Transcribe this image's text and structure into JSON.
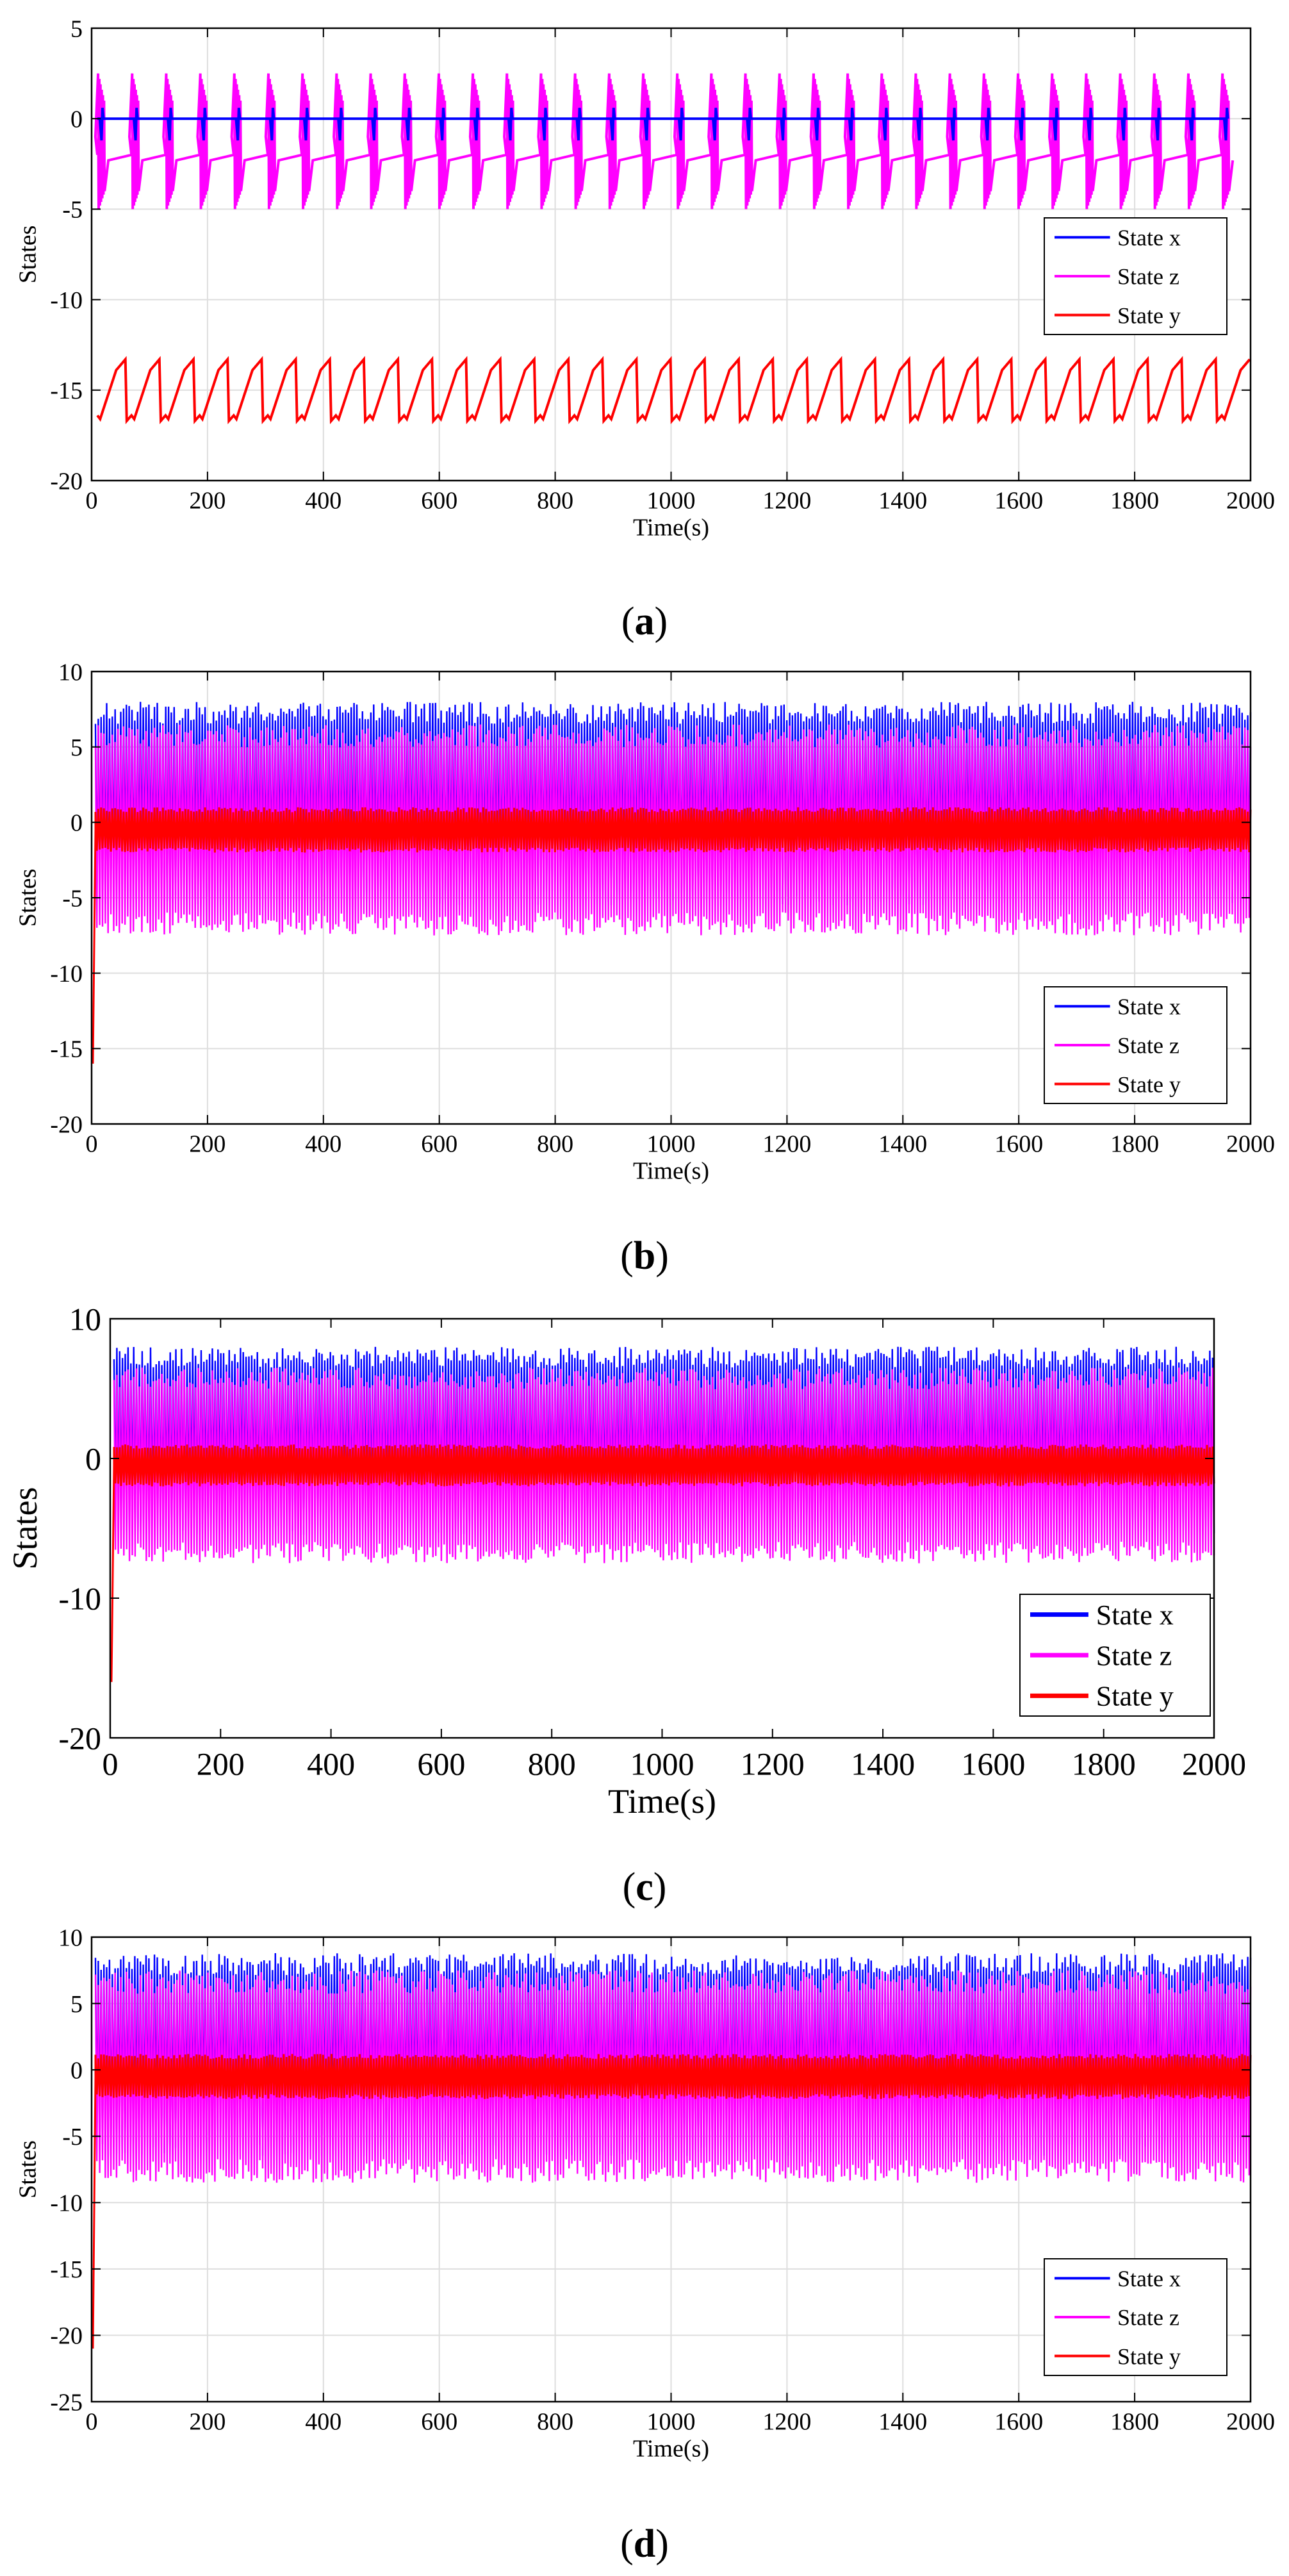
{
  "figure": {
    "panels": [
      {
        "label": "a",
        "caption_open": "(",
        "caption_close": ")"
      },
      {
        "label": "b",
        "caption_open": "(",
        "caption_close": ")"
      },
      {
        "label": "c",
        "caption_open": "(",
        "caption_close": ")"
      },
      {
        "label": "d",
        "caption_open": "(",
        "caption_close": ")"
      }
    ]
  },
  "colors": {
    "state_x": "#0000ff",
    "state_z": "#ff00ff",
    "state_y": "#ff0000",
    "grid": "#dedede",
    "axis": "#000000"
  },
  "chart_data": [
    {
      "type": "line",
      "panel": "a",
      "title": "",
      "xlabel": "Time(s)",
      "ylabel": "States",
      "xlim": [
        0,
        2000
      ],
      "ylim": [
        -20,
        5
      ],
      "xticks": [
        0,
        200,
        400,
        600,
        800,
        1000,
        1200,
        1400,
        1600,
        1800,
        2000
      ],
      "yticks": [
        5,
        0,
        -5,
        -10,
        -15,
        -20
      ],
      "grid": true,
      "legend_position": "center-right",
      "pattern": "periodic",
      "period": 58.8,
      "series": [
        {
          "name": "State x",
          "color": "#0000ff",
          "baseline": 0,
          "spike_low": -1.2,
          "spike_high": 0.6
        },
        {
          "name": "State z",
          "color": "#ff00ff",
          "baseline": -1.5,
          "min": -5,
          "max": 2.5,
          "drift": [
            -2.0,
            -1.0
          ]
        },
        {
          "name": "State y",
          "color": "#ff0000",
          "min": -16.7,
          "max": -13.3,
          "sawtooth": true
        }
      ]
    },
    {
      "type": "line",
      "panel": "b",
      "title": "",
      "xlabel": "Time(s)",
      "ylabel": "States",
      "xlim": [
        0,
        2000
      ],
      "ylim": [
        -20,
        10
      ],
      "xticks": [
        0,
        200,
        400,
        600,
        800,
        1000,
        1200,
        1400,
        1600,
        1800,
        2000
      ],
      "yticks": [
        10,
        5,
        0,
        -5,
        -10,
        -15,
        -20
      ],
      "grid": true,
      "legend_position": "bottom-right",
      "pattern": "chaotic",
      "initial_transient": -16,
      "series": [
        {
          "name": "State x",
          "color": "#0000ff",
          "min": -5.5,
          "max": 8.0
        },
        {
          "name": "State z",
          "color": "#ff00ff",
          "min": -7.5,
          "max": 6.5
        },
        {
          "name": "State y",
          "color": "#ff0000",
          "min": -2.0,
          "max": 1.0
        }
      ]
    },
    {
      "type": "line",
      "panel": "c",
      "title": "",
      "xlabel": "Time(s)",
      "ylabel": "States",
      "xlim": [
        0,
        2000
      ],
      "ylim": [
        -20,
        10
      ],
      "xticks": [
        0,
        200,
        400,
        600,
        800,
        1000,
        1200,
        1400,
        1600,
        1800,
        2000
      ],
      "yticks": [
        10,
        0,
        -10,
        -20
      ],
      "grid": false,
      "legend_position": "bottom-right",
      "pattern": "chaotic",
      "initial_transient": -16,
      "series": [
        {
          "name": "State x",
          "color": "#0000ff",
          "min": -5.5,
          "max": 8.0
        },
        {
          "name": "State z",
          "color": "#ff00ff",
          "min": -7.5,
          "max": 6.5
        },
        {
          "name": "State y",
          "color": "#ff0000",
          "min": -2.0,
          "max": 1.0
        }
      ]
    },
    {
      "type": "line",
      "panel": "d",
      "title": "",
      "xlabel": "Time(s)",
      "ylabel": "States",
      "xlim": [
        0,
        2000
      ],
      "ylim": [
        -25,
        10
      ],
      "xticks": [
        0,
        200,
        400,
        600,
        800,
        1000,
        1200,
        1400,
        1600,
        1800,
        2000
      ],
      "yticks": [
        10,
        5,
        0,
        -5,
        -10,
        -15,
        -20,
        -25
      ],
      "grid": true,
      "legend_position": "bottom-right",
      "pattern": "chaotic",
      "initial_transient": -21,
      "series": [
        {
          "name": "State x",
          "color": "#0000ff",
          "min": -6.5,
          "max": 8.8
        },
        {
          "name": "State z",
          "color": "#ff00ff",
          "min": -8.5,
          "max": 7.5
        },
        {
          "name": "State y",
          "color": "#ff0000",
          "min": -2.2,
          "max": 1.2
        }
      ]
    }
  ]
}
